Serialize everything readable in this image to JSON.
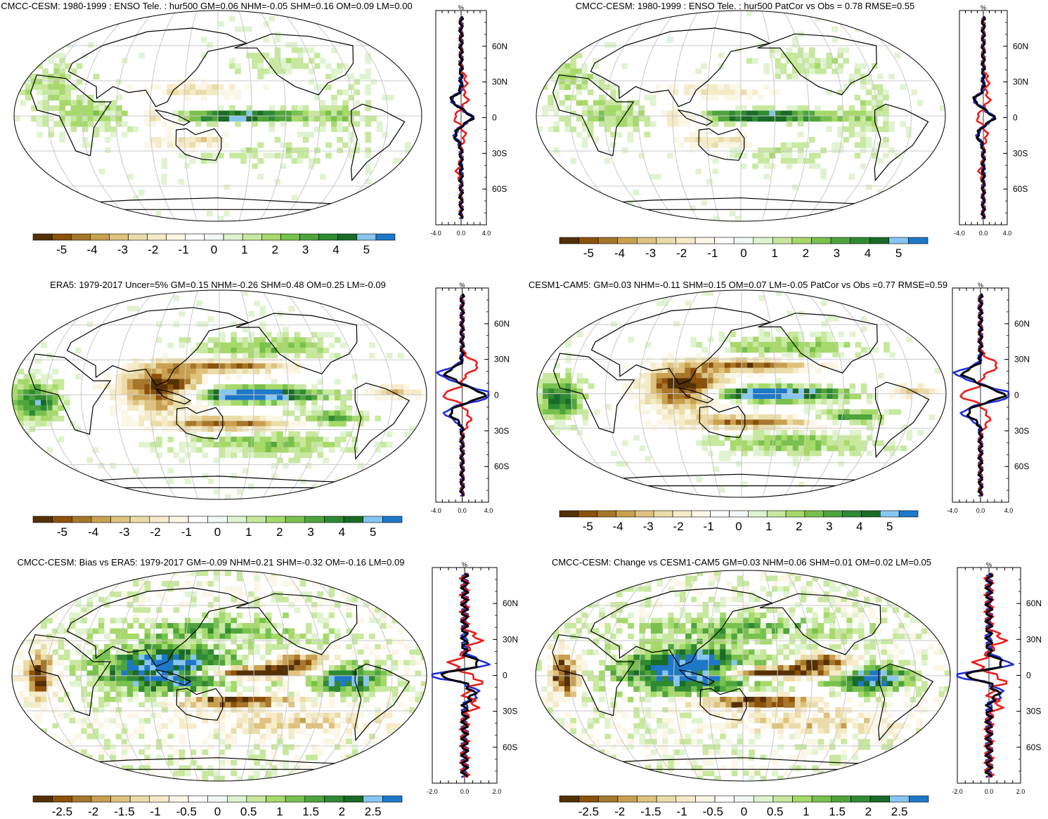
{
  "colors": {
    "land_outline": "#000000",
    "grid": "#c8c8c8",
    "zonal_blue": "#1f2fe0",
    "zonal_red": "#ee1c1c",
    "zonal_black": "#000000"
  },
  "colorbar": {
    "palette": [
      "#543005",
      "#8c510a",
      "#a6772a",
      "#c8a050",
      "#dfc27d",
      "#eadcaa",
      "#f6ebc8",
      "#fbf6e6",
      "#ffffff",
      "#f2f8f5",
      "#e0f3d0",
      "#c7e89e",
      "#a6d96a",
      "#78c14e",
      "#4fa43c",
      "#2e8a33",
      "#1a6b26",
      "#87c6f0",
      "#1e78c8"
    ],
    "labels_main": [
      "-5",
      "-4",
      "-3",
      "-2",
      "-1",
      "0",
      "1",
      "2",
      "3",
      "4",
      "5"
    ],
    "labels_diff": [
      "-2.5",
      "-2",
      "-1.5",
      "-1",
      "-0.5",
      "0",
      "0.5",
      "1",
      "1.5",
      "2",
      "2.5"
    ]
  },
  "lat_labels": [
    "60N",
    "30N",
    "0",
    "30S",
    "60S"
  ],
  "chart_data": [
    {
      "type": "heatmap",
      "title": "CMCC-CESM: 1980-1999 : ENSO Tele. : hur500 GM=0.06 NHM=-0.05 SHM=0.16 OM=0.09 LM=0.00",
      "colorbar_range": [
        -5,
        5
      ],
      "profile": {
        "unit": "%",
        "xlim": [
          -4.0,
          4.0
        ],
        "xtick_labels": [
          "-4.0",
          "0.0",
          "4.0"
        ],
        "series_colors": [
          "blue",
          "red",
          "black"
        ]
      }
    },
    {
      "type": "heatmap",
      "title": "CMCC-CESM: 1980-1999 : ENSO Tele. : hur500 PatCor vs Obs = 0.78 RMSE=0.55",
      "colorbar_range": [
        -5,
        5
      ],
      "profile": {
        "unit": "%",
        "xlim": [
          -4.0,
          4.0
        ],
        "xtick_labels": [
          "-4.0",
          "0.0",
          "4.0"
        ],
        "series_colors": [
          "blue",
          "red",
          "black"
        ]
      }
    },
    {
      "type": "heatmap",
      "title": "ERA5: 1979-2017 Uncer=5% GM=0.15 NHM=-0.26 SHM=0.48 OM=0.25 LM=-0.09",
      "colorbar_range": [
        -5,
        5
      ],
      "profile": {
        "unit": "%",
        "xlim": [
          -4.0,
          4.0
        ],
        "xtick_labels": [
          "-4.0",
          "0.0",
          "4.0"
        ],
        "series_colors": [
          "blue",
          "red",
          "black"
        ]
      }
    },
    {
      "type": "heatmap",
      "title": "CESM1-CAM5: GM=0.03 NHM=-0.11 SHM=0.15 OM=0.07 LM=-0.05 PatCor vs Obs =0.77 RMSE=0.59",
      "colorbar_range": [
        -5,
        5
      ],
      "profile": {
        "unit": "%",
        "xlim": [
          -4.0,
          4.0
        ],
        "xtick_labels": [
          "-4.0",
          "0.0",
          "4.0"
        ],
        "series_colors": [
          "blue",
          "red",
          "black"
        ]
      }
    },
    {
      "type": "heatmap",
      "title": "CMCC-CESM: Bias vs ERA5: 1979-2017 GM=-0.09 NHM=0.21 SHM=-0.32 OM=-0.16 LM=0.09",
      "colorbar_range": [
        -2.5,
        2.5
      ],
      "profile": {
        "unit": "%",
        "xlim": [
          -2.0,
          2.0
        ],
        "xtick_labels": [
          "-2.0",
          "0.0",
          "2.0"
        ],
        "series_colors": [
          "blue",
          "red",
          "black"
        ]
      }
    },
    {
      "type": "heatmap",
      "title": "CMCC-CESM: Change vs CESM1-CAM5 GM=0.03 NHM=0.06 SHM=0.01 OM=0.02 LM=0.05",
      "colorbar_range": [
        -2.5,
        2.5
      ],
      "profile": {
        "unit": "%",
        "xlim": [
          -2.0,
          2.0
        ],
        "xtick_labels": [
          "-2.0",
          "0.0",
          "2.0"
        ],
        "series_colors": [
          "blue",
          "red",
          "black"
        ]
      }
    }
  ]
}
